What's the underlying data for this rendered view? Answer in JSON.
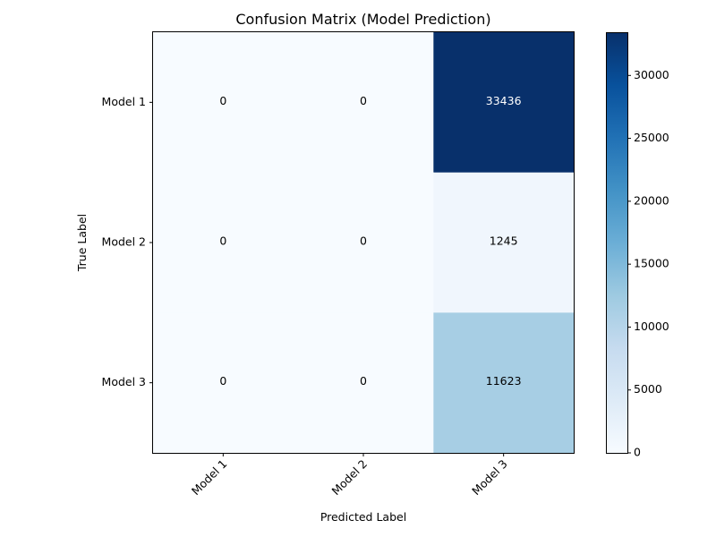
{
  "chart_data": {
    "type": "heatmap",
    "title": "Confusion Matrix (Model Prediction)",
    "xlabel": "Predicted Label",
    "ylabel": "True Label",
    "x_categories": [
      "Model 1",
      "Model 2",
      "Model 3"
    ],
    "y_categories": [
      "Model 1",
      "Model 2",
      "Model 3"
    ],
    "values": [
      [
        0,
        0,
        33436
      ],
      [
        0,
        0,
        1245
      ],
      [
        0,
        0,
        11623
      ]
    ],
    "colorbar": {
      "min": 0,
      "max": 33436,
      "ticks": [
        0,
        5000,
        10000,
        15000,
        20000,
        25000,
        30000
      ]
    },
    "colormap": {
      "name": "Blues",
      "stops": [
        "#f7fbff",
        "#deebf7",
        "#c6dbef",
        "#9ecae1",
        "#6baed6",
        "#4292c6",
        "#2171b5",
        "#08519c",
        "#08306b"
      ]
    },
    "text_colors": {
      "dark": "#000000",
      "light": "#ffffff"
    }
  }
}
